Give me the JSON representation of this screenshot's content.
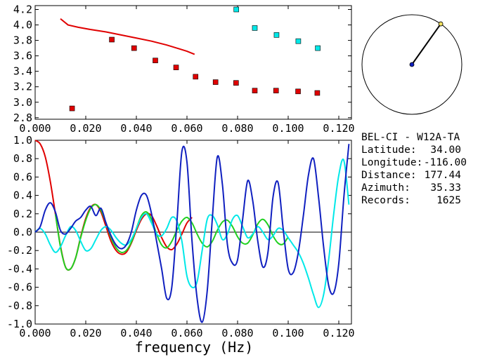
{
  "colors": {
    "red": "#e00000",
    "cyan": "#00e8e8",
    "blue": "#1020c0",
    "green": "#20d020",
    "axis": "#000000"
  },
  "station_info": {
    "station": "BEL-CI",
    "dash": "-",
    "target": "W12A-TA",
    "rows": [
      {
        "label": "Latitude:",
        "value": "34.00"
      },
      {
        "label": "Longitude:",
        "value": "-116.00"
      },
      {
        "label": "Distance:",
        "value": "177.44"
      },
      {
        "label": "Azimuth:",
        "value": "35.33"
      },
      {
        "label": "Records:",
        "value": "1625"
      }
    ]
  },
  "chart_data": [
    {
      "type": "scatter",
      "xlim": [
        0.0,
        0.125
      ],
      "ylim": [
        2.78,
        4.25
      ],
      "x_ticks": [
        "0.000",
        "0.020",
        "0.040",
        "0.060",
        "0.080",
        "0.100",
        "0.120"
      ],
      "x_tick_values": [
        0.0,
        0.02,
        0.04,
        0.06,
        0.08,
        0.1,
        0.12
      ],
      "y_ticks": [
        "4.2",
        "4.0",
        "3.8",
        "3.6",
        "3.4",
        "3.2",
        "3.0",
        "2.8"
      ],
      "y_tick_values": [
        4.2,
        4.0,
        3.8,
        3.6,
        3.4,
        3.2,
        3.0,
        2.8
      ],
      "red_points": {
        "x": [
          0.0146,
          0.0303,
          0.0391,
          0.0475,
          0.0557,
          0.0634,
          0.0713,
          0.0794,
          0.0868,
          0.0952,
          0.1039,
          0.1115
        ],
        "y": [
          2.92,
          3.81,
          3.7,
          3.54,
          3.45,
          3.33,
          3.26,
          3.25,
          3.15,
          3.15,
          3.14,
          3.12
        ]
      },
      "cyan_points": {
        "x": [
          0.0795,
          0.0868,
          0.0954,
          0.104,
          0.1117
        ],
        "y": [
          4.2,
          3.96,
          3.87,
          3.79,
          3.7
        ]
      },
      "red_curve": {
        "x": [
          0.01,
          0.013,
          0.017,
          0.022,
          0.028,
          0.034,
          0.04,
          0.046,
          0.052,
          0.057,
          0.06,
          0.063
        ],
        "y": [
          4.08,
          4.0,
          3.97,
          3.94,
          3.91,
          3.87,
          3.83,
          3.79,
          3.74,
          3.69,
          3.66,
          3.62
        ]
      }
    },
    {
      "type": "line",
      "xlabel": "frequency (Hz)",
      "xlim": [
        0.0,
        0.125
      ],
      "ylim": [
        -1.0,
        1.0
      ],
      "x_ticks": [
        "0.000",
        "0.020",
        "0.040",
        "0.060",
        "0.080",
        "0.100",
        "0.120"
      ],
      "x_tick_values": [
        0.0,
        0.02,
        0.04,
        0.06,
        0.08,
        0.1,
        0.12
      ],
      "y_ticks": [
        "1.0",
        "0.8",
        "0.6",
        "0.4",
        "0.2",
        "0.0",
        "-0.2",
        "-0.4",
        "-0.6",
        "-0.8",
        "-1.0"
      ],
      "y_tick_values": [
        1.0,
        0.8,
        0.6,
        0.4,
        0.2,
        0.0,
        -0.2,
        -0.4,
        -0.6,
        -0.8,
        -1.0
      ],
      "zero_line": true,
      "series": [
        {
          "color_key": "red",
          "x": [
            0.0,
            0.002,
            0.004,
            0.006,
            0.008,
            0.01,
            0.012,
            0.014,
            0.016,
            0.018,
            0.02,
            0.022,
            0.024,
            0.026,
            0.028,
            0.03,
            0.032,
            0.034,
            0.036,
            0.038,
            0.04,
            0.042,
            0.044,
            0.046,
            0.048,
            0.05,
            0.052,
            0.054,
            0.056,
            0.058,
            0.06,
            0.062
          ],
          "y": [
            1.0,
            0.96,
            0.82,
            0.55,
            0.2,
            -0.15,
            -0.38,
            -0.4,
            -0.28,
            -0.05,
            0.15,
            0.27,
            0.3,
            0.22,
            0.06,
            -0.1,
            -0.2,
            -0.24,
            -0.22,
            -0.12,
            0.02,
            0.14,
            0.2,
            0.18,
            0.07,
            -0.06,
            -0.16,
            -0.19,
            -0.13,
            -0.02,
            0.1,
            0.16
          ]
        },
        {
          "color_key": "green",
          "x": [
            0.008,
            0.01,
            0.012,
            0.014,
            0.016,
            0.018,
            0.02,
            0.022,
            0.024,
            0.026,
            0.028,
            0.03,
            0.032,
            0.034,
            0.036,
            0.038,
            0.04,
            0.042,
            0.044,
            0.046,
            0.048,
            0.05,
            0.052,
            0.054,
            0.056,
            0.058,
            0.06,
            0.062,
            0.064,
            0.066,
            0.068,
            0.07,
            0.072,
            0.074,
            0.076,
            0.078,
            0.08,
            0.082,
            0.084,
            0.086,
            0.088,
            0.09,
            0.092,
            0.094,
            0.096,
            0.098,
            0.1
          ],
          "y": [
            0.2,
            -0.16,
            -0.38,
            -0.4,
            -0.28,
            -0.06,
            0.13,
            0.26,
            0.3,
            0.24,
            0.1,
            -0.06,
            -0.17,
            -0.22,
            -0.2,
            -0.11,
            0.04,
            0.18,
            0.22,
            0.14,
            -0.02,
            -0.14,
            -0.17,
            -0.1,
            0.02,
            0.12,
            0.16,
            0.1,
            -0.02,
            -0.12,
            -0.16,
            -0.1,
            0.02,
            0.11,
            0.13,
            0.06,
            -0.05,
            -0.12,
            -0.12,
            -0.03,
            0.09,
            0.14,
            0.08,
            -0.04,
            -0.12,
            -0.13,
            -0.05
          ]
        },
        {
          "color_key": "cyan",
          "x": [
            0.0,
            0.002,
            0.004,
            0.006,
            0.008,
            0.01,
            0.012,
            0.014,
            0.016,
            0.018,
            0.02,
            0.022,
            0.024,
            0.026,
            0.028,
            0.03,
            0.032,
            0.034,
            0.036,
            0.038,
            0.04,
            0.042,
            0.044,
            0.046,
            0.048,
            0.05,
            0.052,
            0.054,
            0.056,
            0.058,
            0.06,
            0.062,
            0.064,
            0.066,
            0.068,
            0.07,
            0.072,
            0.074,
            0.076,
            0.078,
            0.08,
            0.082,
            0.084,
            0.086,
            0.088,
            0.09,
            0.092,
            0.094,
            0.096,
            0.098,
            0.1,
            0.102,
            0.104,
            0.106,
            0.108,
            0.11,
            0.112,
            0.114,
            0.116,
            0.118,
            0.12,
            0.122,
            0.124
          ],
          "y": [
            0.0,
            0.04,
            -0.02,
            -0.14,
            -0.22,
            -0.16,
            -0.04,
            0.06,
            0.02,
            -0.1,
            -0.2,
            -0.18,
            -0.08,
            0.02,
            0.06,
            0.02,
            -0.06,
            -0.12,
            -0.14,
            -0.08,
            0.04,
            0.16,
            0.2,
            0.1,
            -0.02,
            -0.04,
            0.04,
            0.16,
            0.12,
            -0.1,
            -0.48,
            -0.6,
            -0.54,
            -0.2,
            0.14,
            0.18,
            0.08,
            -0.08,
            -0.02,
            0.14,
            0.18,
            0.06,
            -0.06,
            -0.02,
            0.06,
            0.0,
            -0.08,
            -0.04,
            0.04,
            0.02,
            -0.06,
            -0.14,
            -0.22,
            -0.34,
            -0.5,
            -0.68,
            -0.82,
            -0.68,
            -0.3,
            0.2,
            0.62,
            0.78,
            0.3
          ]
        },
        {
          "color_key": "blue",
          "x": [
            0.0,
            0.002,
            0.004,
            0.006,
            0.008,
            0.01,
            0.012,
            0.014,
            0.016,
            0.018,
            0.02,
            0.022,
            0.024,
            0.026,
            0.028,
            0.03,
            0.032,
            0.034,
            0.036,
            0.038,
            0.04,
            0.042,
            0.044,
            0.046,
            0.048,
            0.05,
            0.052,
            0.054,
            0.056,
            0.058,
            0.06,
            0.062,
            0.064,
            0.066,
            0.068,
            0.07,
            0.072,
            0.074,
            0.076,
            0.078,
            0.08,
            0.082,
            0.084,
            0.086,
            0.088,
            0.09,
            0.092,
            0.094,
            0.096,
            0.098,
            0.1,
            0.102,
            0.104,
            0.106,
            0.108,
            0.11,
            0.112,
            0.114,
            0.116,
            0.118,
            0.12,
            0.122,
            0.124
          ],
          "y": [
            0.0,
            0.06,
            0.24,
            0.32,
            0.22,
            0.02,
            -0.02,
            0.04,
            0.12,
            0.16,
            0.24,
            0.28,
            0.18,
            0.26,
            0.1,
            -0.04,
            -0.14,
            -0.18,
            -0.14,
            0.0,
            0.24,
            0.4,
            0.4,
            0.2,
            -0.1,
            -0.4,
            -0.72,
            -0.6,
            0.1,
            0.88,
            0.76,
            -0.1,
            -0.72,
            -0.98,
            -0.64,
            0.14,
            0.82,
            0.52,
            -0.14,
            -0.34,
            -0.3,
            0.14,
            0.56,
            0.34,
            -0.1,
            -0.38,
            -0.22,
            0.38,
            0.54,
            0.04,
            -0.4,
            -0.44,
            -0.22,
            0.18,
            0.62,
            0.8,
            0.38,
            -0.16,
            -0.58,
            -0.66,
            -0.34,
            0.38,
            0.96
          ]
        }
      ]
    }
  ],
  "polar": {
    "azimuth_deg": 35.33,
    "needle_length_fraction": 1.0
  }
}
